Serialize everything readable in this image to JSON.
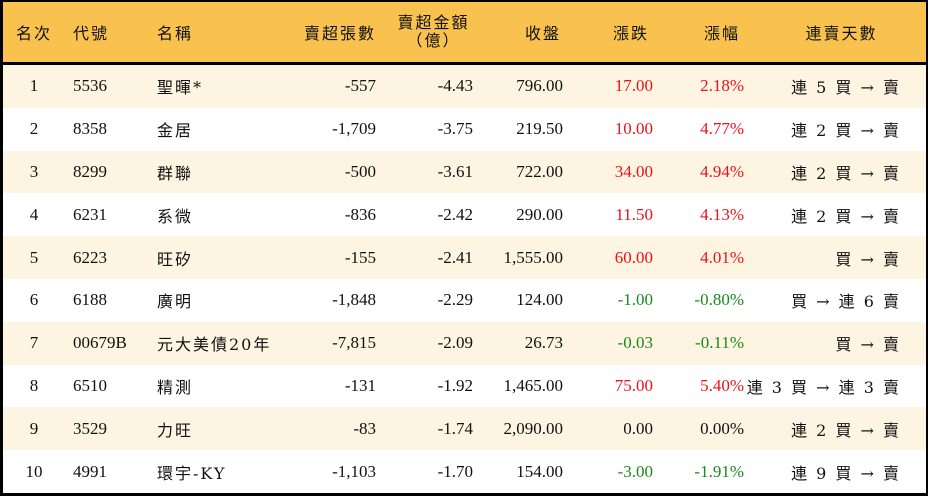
{
  "table": {
    "headers": {
      "rank": "名次",
      "code": "代號",
      "name": "名稱",
      "net_sell_volume": "賣超張數",
      "net_sell_amount_line1": "賣超金額",
      "net_sell_amount_line2": "（億）",
      "close": "收盤",
      "change": "漲跌",
      "change_pct": "漲幅",
      "streak": "連賣天數"
    },
    "colors": {
      "header_bg": "#F9C24F",
      "row_alt_bg": "#FDF4E2",
      "up": "#E8141A",
      "down": "#1A8A1A"
    },
    "rows": [
      {
        "rank": "1",
        "code": "5536",
        "name": "聖暉*",
        "volume": "-557",
        "amount": "-4.43",
        "close": "796.00",
        "change": "17.00",
        "pct": "2.18%",
        "dir": "up",
        "streak": "連 5 買 → 賣"
      },
      {
        "rank": "2",
        "code": "8358",
        "name": "金居",
        "volume": "-1,709",
        "amount": "-3.75",
        "close": "219.50",
        "change": "10.00",
        "pct": "4.77%",
        "dir": "up",
        "streak": "連 2 買 → 賣"
      },
      {
        "rank": "3",
        "code": "8299",
        "name": "群聯",
        "volume": "-500",
        "amount": "-3.61",
        "close": "722.00",
        "change": "34.00",
        "pct": "4.94%",
        "dir": "up",
        "streak": "連 2 買 → 賣"
      },
      {
        "rank": "4",
        "code": "6231",
        "name": "系微",
        "volume": "-836",
        "amount": "-2.42",
        "close": "290.00",
        "change": "11.50",
        "pct": "4.13%",
        "dir": "up",
        "streak": "連 2 買 → 賣"
      },
      {
        "rank": "5",
        "code": "6223",
        "name": "旺矽",
        "volume": "-155",
        "amount": "-2.41",
        "close": "1,555.00",
        "change": "60.00",
        "pct": "4.01%",
        "dir": "up",
        "streak": "買 → 賣"
      },
      {
        "rank": "6",
        "code": "6188",
        "name": "廣明",
        "volume": "-1,848",
        "amount": "-2.29",
        "close": "124.00",
        "change": "-1.00",
        "pct": "-0.80%",
        "dir": "down",
        "streak": "買 → 連 6 賣"
      },
      {
        "rank": "7",
        "code": "00679B",
        "name": "元大美債20年",
        "volume": "-7,815",
        "amount": "-2.09",
        "close": "26.73",
        "change": "-0.03",
        "pct": "-0.11%",
        "dir": "down",
        "streak": "買 → 賣"
      },
      {
        "rank": "8",
        "code": "6510",
        "name": "精測",
        "volume": "-131",
        "amount": "-1.92",
        "close": "1,465.00",
        "change": "75.00",
        "pct": "5.40%",
        "dir": "up",
        "streak": "連 3 買 → 連 3 賣"
      },
      {
        "rank": "9",
        "code": "3529",
        "name": "力旺",
        "volume": "-83",
        "amount": "-1.74",
        "close": "2,090.00",
        "change": "0.00",
        "pct": "0.00%",
        "dir": "flat",
        "streak": "連 2 買 → 賣"
      },
      {
        "rank": "10",
        "code": "4991",
        "name": "環宇-KY",
        "volume": "-1,103",
        "amount": "-1.70",
        "close": "154.00",
        "change": "-3.00",
        "pct": "-1.91%",
        "dir": "down",
        "streak": "連 9 買 → 賣"
      }
    ]
  }
}
